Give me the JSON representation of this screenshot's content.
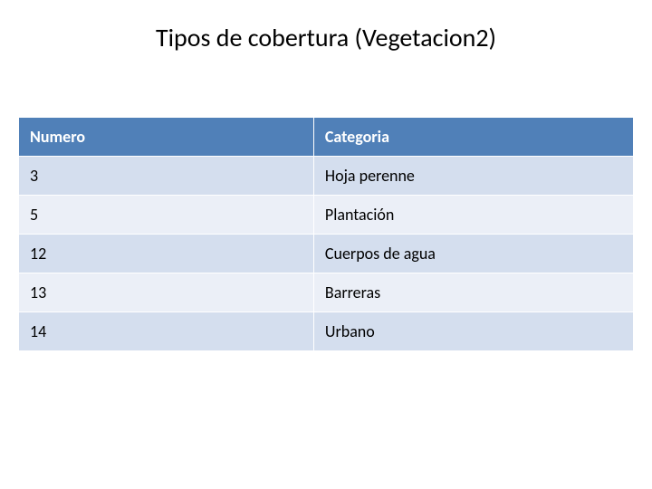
{
  "title": "Tipos de cobertura (Vegetacion2)",
  "table": {
    "columns": [
      "Numero",
      "Categoria"
    ],
    "rows": [
      [
        "3",
        "Hoja  perenne"
      ],
      [
        "5",
        "Plantación"
      ],
      [
        "12",
        "Cuerpos de agua"
      ],
      [
        "13",
        "Barreras"
      ],
      [
        "14",
        "Urbano"
      ]
    ],
    "header_bg": "#5080b8",
    "header_fg": "#ffffff",
    "row_odd_bg": "#d4deee",
    "row_even_bg": "#ebeff7",
    "border_color": "#ffffff",
    "font_family": "Calibri",
    "header_fontsize": 18,
    "cell_fontsize": 18,
    "title_fontsize": 28,
    "title_color": "#000000"
  }
}
